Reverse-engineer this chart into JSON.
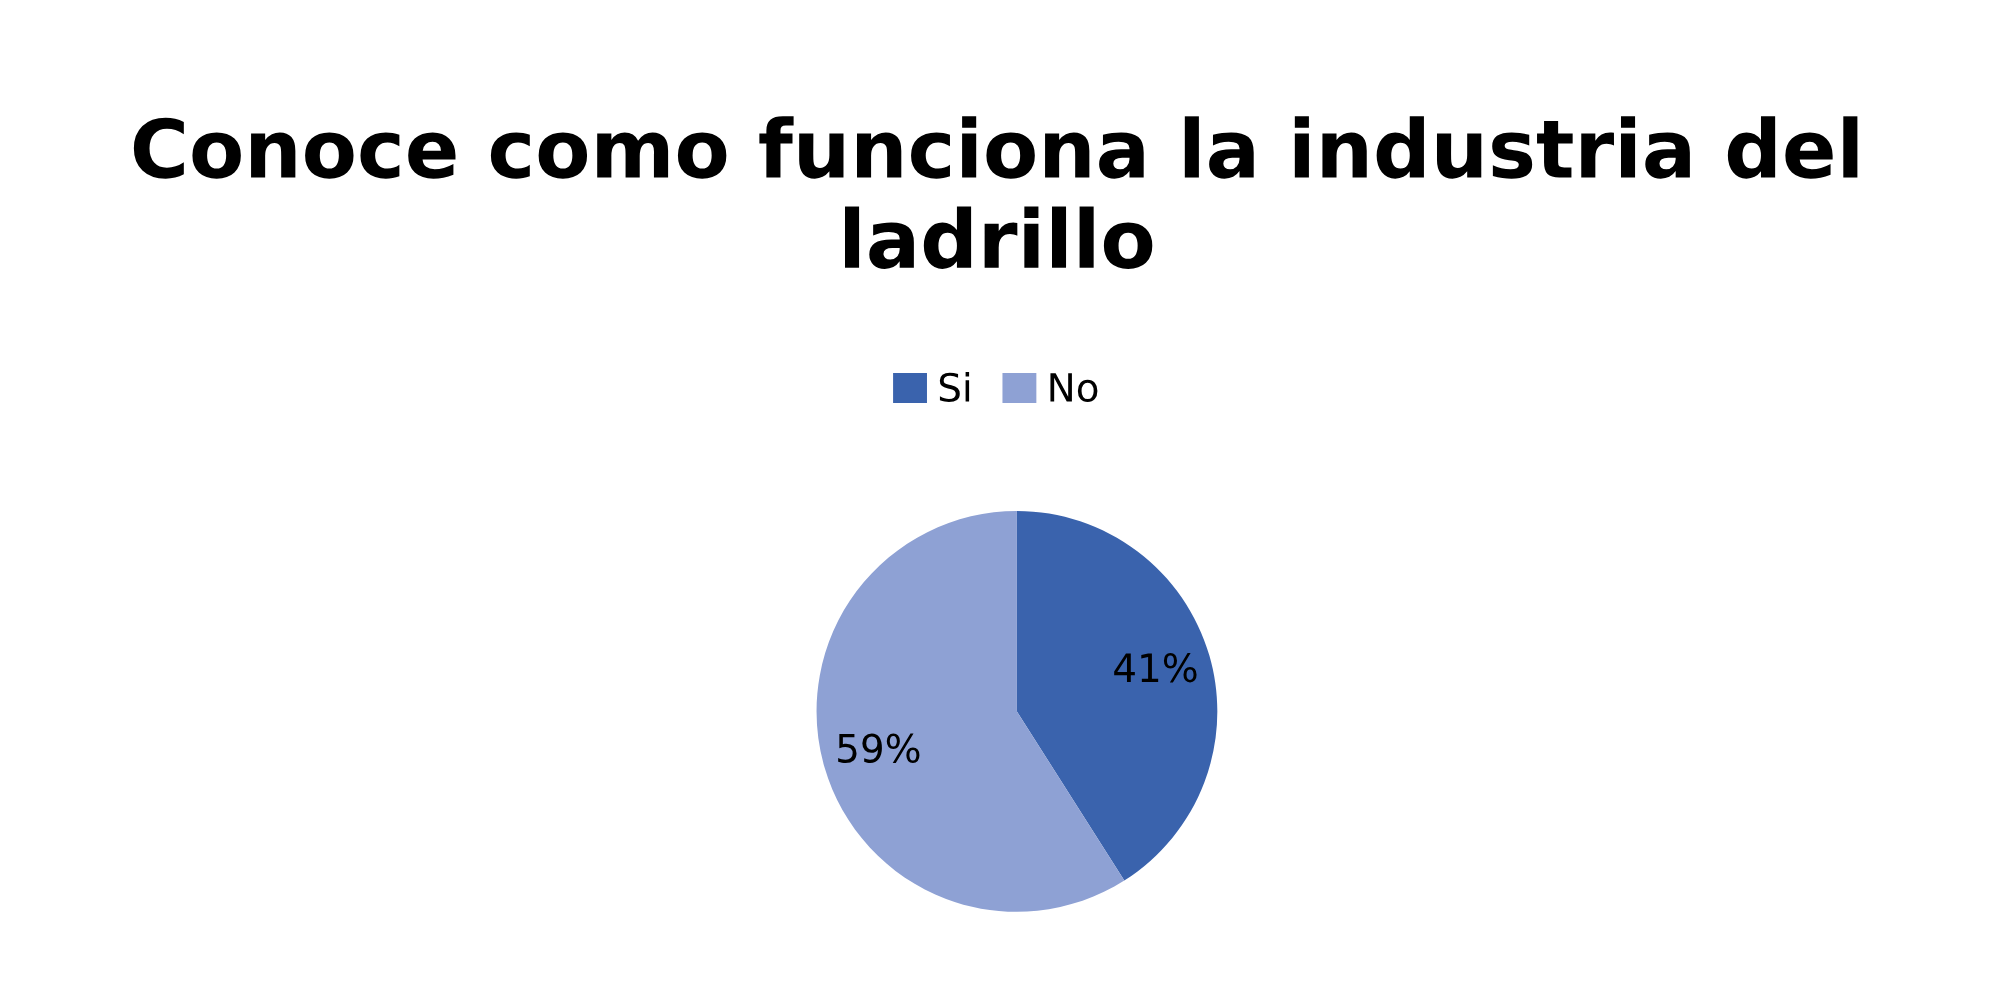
{
  "chart_data": {
    "type": "pie",
    "title": "Conoce como funciona la industria del ladrillo",
    "categories": [
      "Si",
      "No"
    ],
    "values": [
      41,
      59
    ],
    "colors": [
      "#3a63ad",
      "#8ea1d4"
    ],
    "value_labels": [
      "41%",
      "59%"
    ],
    "legend": "top"
  }
}
